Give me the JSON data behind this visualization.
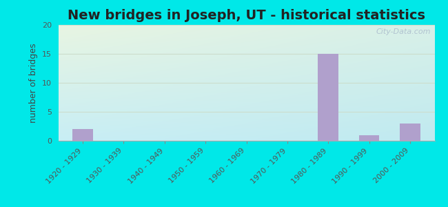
{
  "title": "New bridges in Joseph, UT - historical statistics",
  "categories": [
    "1920 - 1929",
    "1930 - 1939",
    "1940 - 1949",
    "1950 - 1959",
    "1960 - 1969",
    "1970 - 1979",
    "1980 - 1989",
    "1990 - 1999",
    "2000 - 2009"
  ],
  "values": [
    2,
    0,
    0,
    0,
    0,
    0,
    15,
    1,
    3
  ],
  "bar_color": "#b0a0cc",
  "ylabel": "number of bridges",
  "ylim": [
    0,
    20
  ],
  "yticks": [
    0,
    5,
    10,
    15,
    20
  ],
  "title_fontsize": 14,
  "axis_label_fontsize": 9,
  "tick_fontsize": 8,
  "background_outer": "#00e8e8",
  "bg_top_left": "#e8f5e2",
  "bg_bottom_right": "#c8eef5",
  "watermark": "City-Data.com",
  "title_color": "#222222",
  "axis_label_color": "#444444",
  "tick_color": "#555555",
  "grid_color": "#ccddcc",
  "spine_color": "#aaaaaa"
}
